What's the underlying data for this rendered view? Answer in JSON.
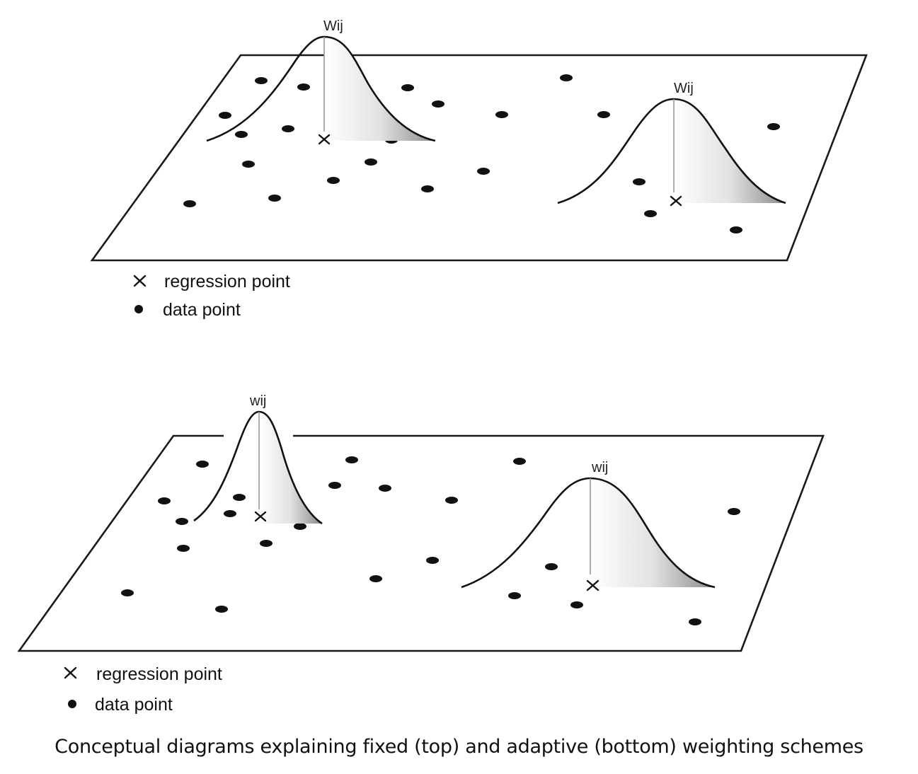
{
  "panels": [
    {
      "id": "fixed",
      "weight_label": "Wij",
      "legend": {
        "regression": "regression point",
        "data": "data point"
      }
    },
    {
      "id": "adaptive",
      "weight_label": "wij",
      "legend": {
        "regression": "regression point",
        "data": "data point"
      }
    }
  ],
  "caption": "Conceptual diagrams explaining fixed (top) and adaptive (bottom) weighting schemes",
  "colors": {
    "ink": "#111111",
    "stem": "#9a9a9a",
    "background": "#ffffff"
  }
}
